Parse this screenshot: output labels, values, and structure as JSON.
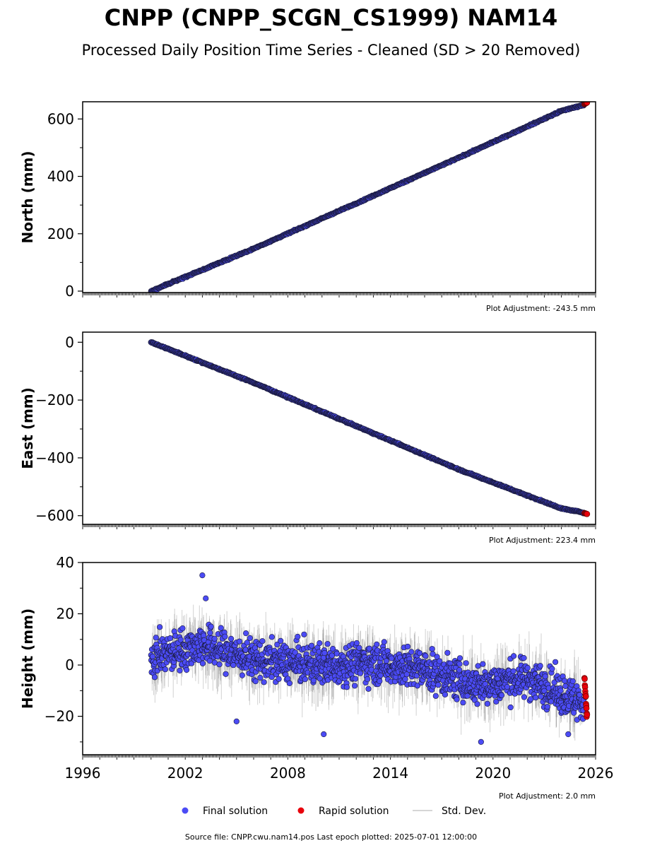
{
  "title": "CNPP (CNPP_SCGN_CS1999) NAM14",
  "subtitle": "Processed Daily Position Time Series - Cleaned (SD > 20 Removed)",
  "legend": {
    "final": "Final solution",
    "rapid": "Rapid solution",
    "std": "Std. Dev."
  },
  "footer": "Source file: CNPP.cwu.nam14.pos  Last epoch plotted: 2025-07-01 12:00:00",
  "colors": {
    "final": "#4b4bf5",
    "rapid": "#e8000b",
    "std": "#b0b0b0",
    "edge": "#1a1a3a"
  },
  "chart_data": [
    {
      "type": "scatter",
      "ylabel": "North (mm)",
      "xlim": [
        1996,
        2026
      ],
      "ylim": [
        -5,
        660
      ],
      "yticks": [
        0,
        200,
        400,
        600
      ],
      "adjustment": "Plot Adjustment: -243.5 mm",
      "series": [
        {
          "name": "Final solution",
          "trend": [
            [
              2000.0,
              0
            ],
            [
              2006.0,
              148
            ],
            [
              2012.0,
              306
            ],
            [
              2018.0,
              465
            ],
            [
              2024.0,
              628
            ],
            [
              2025.35,
              650
            ]
          ]
        },
        {
          "name": "Rapid solution",
          "trend": [
            [
              2025.35,
              652
            ],
            [
              2025.5,
              657
            ]
          ]
        }
      ]
    },
    {
      "type": "scatter",
      "ylabel": "East (mm)",
      "xlim": [
        1996,
        2026
      ],
      "ylim": [
        -630,
        35
      ],
      "yticks": [
        0,
        -200,
        -400,
        -600
      ],
      "tick_labels": [
        "0",
        "−200",
        "−400",
        "−600"
      ],
      "adjustment": "Plot Adjustment: 223.4 mm",
      "series": [
        {
          "name": "Final solution",
          "trend": [
            [
              2000.0,
              0
            ],
            [
              2006.0,
              -140
            ],
            [
              2012.0,
              -290
            ],
            [
              2018.0,
              -440
            ],
            [
              2024.0,
              -575
            ],
            [
              2025.35,
              -590
            ]
          ]
        },
        {
          "name": "Rapid solution",
          "trend": [
            [
              2025.35,
              -591
            ],
            [
              2025.5,
              -594
            ]
          ]
        }
      ]
    },
    {
      "type": "scatter",
      "ylabel": "Height (mm)",
      "xlim": [
        1996,
        2026
      ],
      "ylim": [
        -35,
        40
      ],
      "yticks": [
        40,
        20,
        0,
        -20
      ],
      "tick_labels": [
        "40",
        "20",
        "0",
        "−20"
      ],
      "xticks": [
        1996,
        2002,
        2008,
        2014,
        2020,
        2026
      ],
      "adjustment": "Plot Adjustment: 2.0 mm",
      "series": [
        {
          "name": "Final solution",
          "trend": [
            [
              2000.0,
              3
            ],
            [
              2003.0,
              8
            ],
            [
              2006.0,
              2
            ],
            [
              2010.0,
              0
            ],
            [
              2013.0,
              1
            ],
            [
              2016.0,
              -2
            ],
            [
              2019.0,
              -8
            ],
            [
              2022.0,
              -5
            ],
            [
              2025.3,
              -15
            ]
          ],
          "outliers": [
            [
              2003.0,
              35
            ],
            [
              2003.2,
              26
            ],
            [
              2010.1,
              -27
            ],
            [
              2019.3,
              -30
            ],
            [
              2024.4,
              -27
            ],
            [
              2005.0,
              -22
            ]
          ]
        },
        {
          "name": "Rapid solution",
          "trend": [
            [
              2025.35,
              -5
            ],
            [
              2025.5,
              -20
            ]
          ]
        }
      ]
    }
  ]
}
